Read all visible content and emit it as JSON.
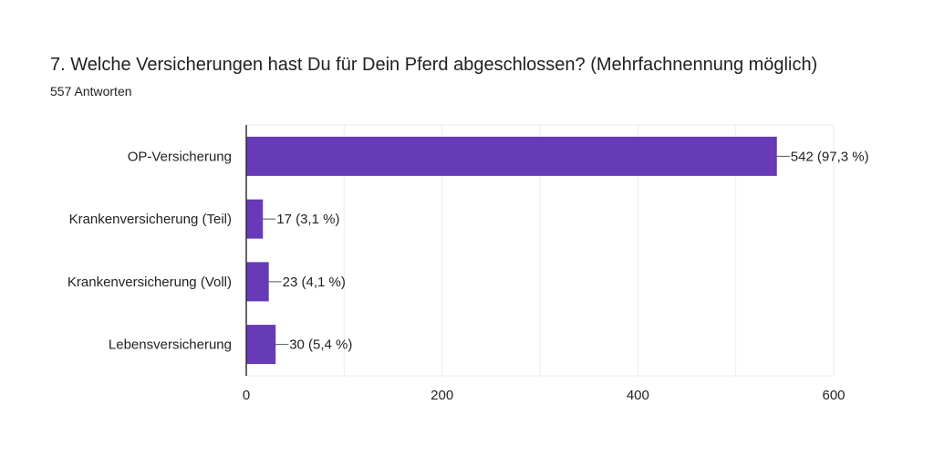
{
  "question": {
    "title": "7. Welche Versicherungen hast Du für Dein Pferd abgeschlossen? (Mehrfachnennung möglich)",
    "responses": "557 Antworten"
  },
  "colors": {
    "bar": "#673ab7",
    "grid": "#ebebeb",
    "axis": "#333333",
    "text": "#222222"
  },
  "chart_data": {
    "type": "bar",
    "orientation": "horizontal",
    "categories": [
      "OP-Versicherung",
      "Krankenversicherung (Teil)",
      "Krankenversicherung (Voll)",
      "Lebensversicherung"
    ],
    "values": [
      542,
      17,
      23,
      30
    ],
    "data_labels": [
      "542 (97,3 %)",
      "17 (3,1 %)",
      "23 (4,1 %)",
      "30 (5,4 %)"
    ],
    "xticks": [
      0,
      200,
      400,
      600
    ],
    "xlim": [
      0,
      600
    ],
    "grid": true
  }
}
